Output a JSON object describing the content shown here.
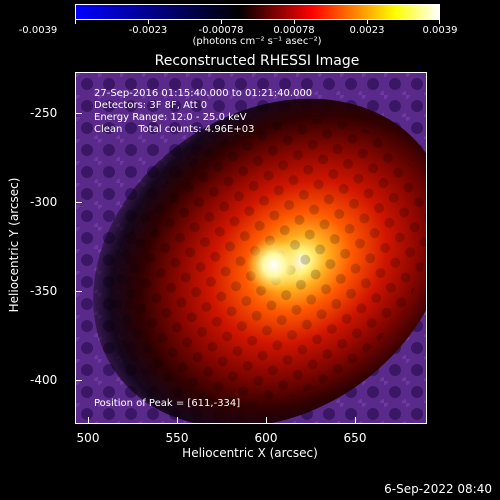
{
  "colorbar": {
    "tick_labels": [
      "-0.0039",
      "-0.0023",
      "-0.00078",
      "0.00078",
      "0.0023",
      "0.0039"
    ],
    "units": "(photons cm⁻² s⁻¹ asec⁻²)",
    "colors": [
      "#0000ff",
      "#000000",
      "#ff0000",
      "#ffff00",
      "#ffffff"
    ]
  },
  "plot": {
    "title": "Reconstructed RHESSI Image",
    "xlabel": "Heliocentric X (arcsec)",
    "ylabel": "Heliocentric Y (arcsec)",
    "x_ticks": [
      "500",
      "550",
      "600",
      "650"
    ],
    "y_ticks": [
      "-250",
      "-300",
      "-350",
      "-400"
    ],
    "xlim": [
      489,
      686
    ],
    "ylim": [
      -422,
      -225
    ]
  },
  "info": {
    "line1": "27-Sep-2016 01:15:40.000 to 01:21:40.000",
    "line2": "Detectors: 3F 8F, Att 0",
    "line3": "Energy Range: 12.0 - 25.0 keV",
    "line4": "Clean     Total counts: 4.96E+03"
  },
  "peak_note": "Position of Peak = [611,-334]",
  "footer_date": "6-Sep-2022 08:40"
}
